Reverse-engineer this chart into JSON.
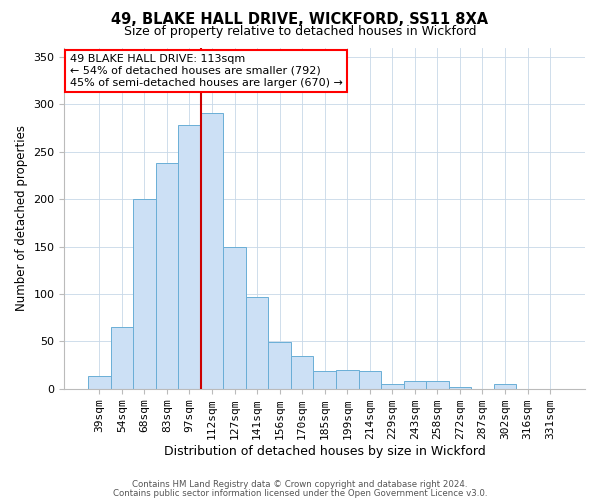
{
  "title": "49, BLAKE HALL DRIVE, WICKFORD, SS11 8XA",
  "subtitle": "Size of property relative to detached houses in Wickford",
  "xlabel": "Distribution of detached houses by size in Wickford",
  "ylabel": "Number of detached properties",
  "bar_labels": [
    "39sqm",
    "54sqm",
    "68sqm",
    "83sqm",
    "97sqm",
    "112sqm",
    "127sqm",
    "141sqm",
    "156sqm",
    "170sqm",
    "185sqm",
    "199sqm",
    "214sqm",
    "229sqm",
    "243sqm",
    "258sqm",
    "272sqm",
    "287sqm",
    "302sqm",
    "316sqm",
    "331sqm"
  ],
  "bar_values": [
    13,
    65,
    200,
    238,
    278,
    291,
    150,
    97,
    49,
    35,
    19,
    20,
    19,
    5,
    8,
    8,
    2,
    0,
    5,
    0,
    0
  ],
  "bar_color": "#cce0f5",
  "bar_edge_color": "#6aaed6",
  "vline_color": "#cc0000",
  "ylim": [
    0,
    360
  ],
  "yticks": [
    0,
    50,
    100,
    150,
    200,
    250,
    300,
    350
  ],
  "annotation_title": "49 BLAKE HALL DRIVE: 113sqm",
  "annotation_line1": "← 54% of detached houses are smaller (792)",
  "annotation_line2": "45% of semi-detached houses are larger (670) →",
  "footnote1": "Contains HM Land Registry data © Crown copyright and database right 2024.",
  "footnote2": "Contains public sector information licensed under the Open Government Licence v3.0.",
  "vline_index": 5
}
